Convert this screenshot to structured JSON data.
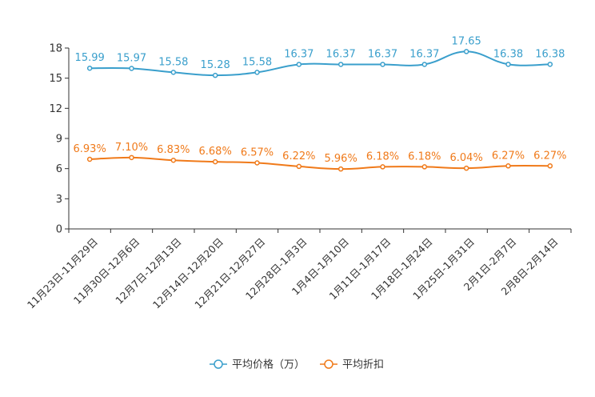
{
  "chart_data": {
    "type": "line",
    "title": "",
    "xlabel": "",
    "ylabel": "",
    "ylim": [
      0,
      18
    ],
    "yticks": [
      0,
      3,
      6,
      9,
      12,
      15,
      18
    ],
    "grid": false,
    "legend_position": "bottom",
    "categories": [
      "11月23日-11月29日",
      "11月30日-12月6日",
      "12月7日-12月13日",
      "12月14日-12月20日",
      "12月21日-12月27日",
      "12月28日-1月3日",
      "1月4日-1月10日",
      "1月11日-1月17日",
      "1月18日-1月24日",
      "1月25日-1月31日",
      "2月1日-2月7日",
      "2月8日-2月14日"
    ],
    "series": [
      {
        "name": "平均价格（万）",
        "color": "#3a9fcc",
        "values": [
          15.99,
          15.97,
          15.58,
          15.28,
          15.58,
          16.37,
          16.37,
          16.37,
          16.37,
          17.65,
          16.38,
          16.38
        ],
        "labels": [
          "15.99",
          "15.97",
          "15.58",
          "15.28",
          "15.58",
          "16.37",
          "16.37",
          "16.37",
          "16.37",
          "17.65",
          "16.38",
          "16.38"
        ]
      },
      {
        "name": "平均折扣",
        "color": "#f07a1a",
        "values": [
          6.93,
          7.1,
          6.83,
          6.68,
          6.57,
          6.22,
          5.96,
          6.18,
          6.18,
          6.04,
          6.27,
          6.27
        ],
        "labels": [
          "6.93%",
          "7.10%",
          "6.83%",
          "6.68%",
          "6.57%",
          "6.22%",
          "5.96%",
          "6.18%",
          "6.18%",
          "6.04%",
          "6.27%",
          "6.27%"
        ]
      }
    ]
  }
}
